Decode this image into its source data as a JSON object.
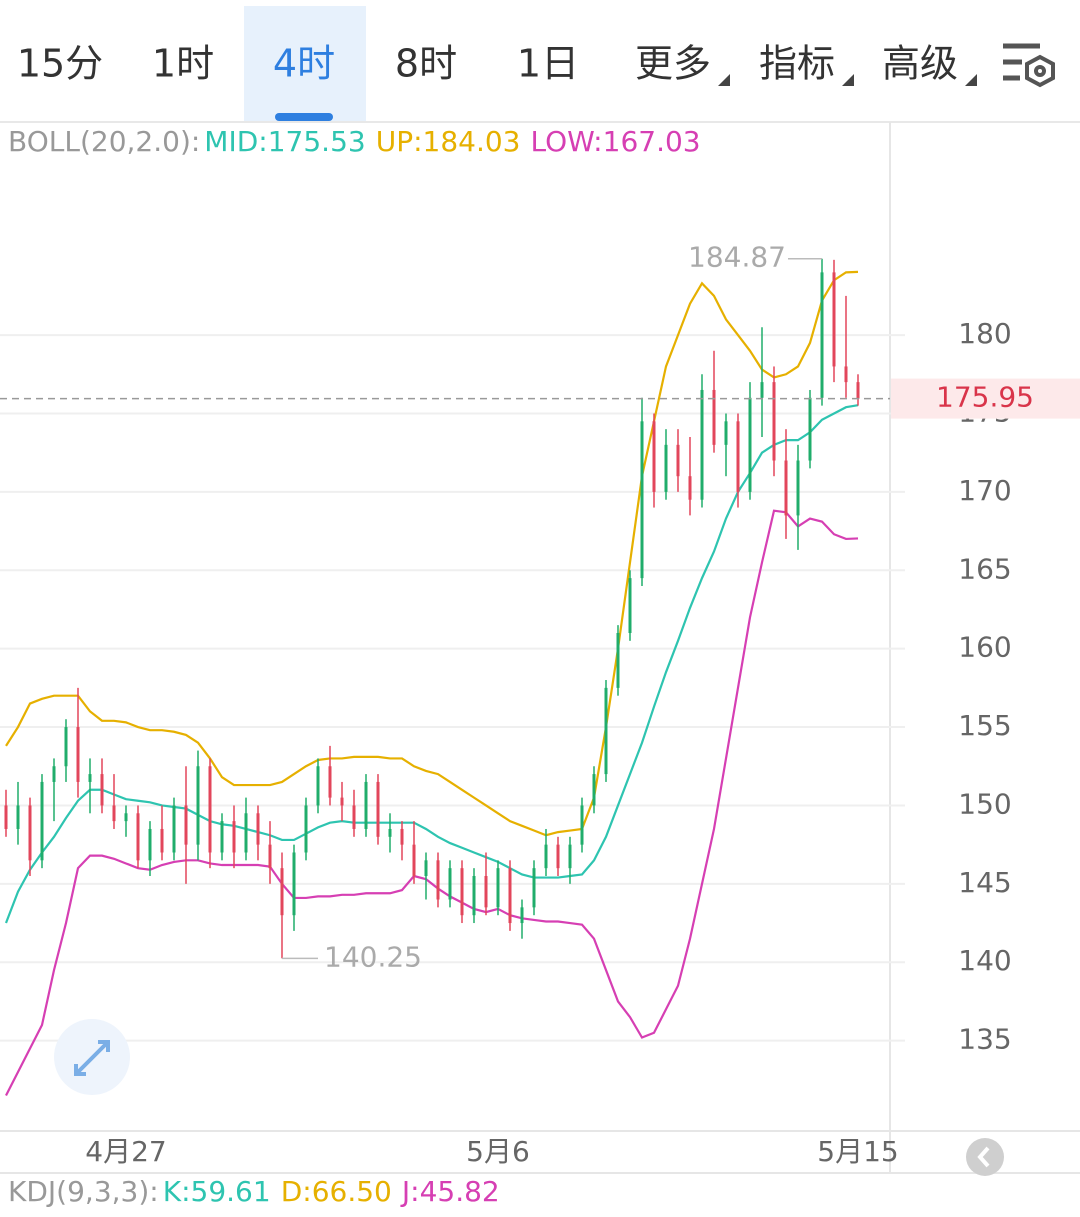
{
  "tabs": {
    "items": [
      "15分",
      "1时",
      "4时",
      "8时",
      "1日",
      "更多",
      "指标",
      "高级"
    ],
    "active": 2
  },
  "chart_data": {
    "type": "candlestick",
    "indicator": "BOLL(20,2.0):",
    "categories": [
      null,
      null,
      null,
      null,
      null,
      null,
      null,
      null,
      null,
      null,
      "4月27",
      null,
      null,
      null,
      null,
      null,
      null,
      null,
      null,
      null,
      null,
      null,
      null,
      null,
      null,
      null,
      null,
      null,
      null,
      null,
      null,
      null,
      null,
      null,
      null,
      null,
      null,
      null,
      null,
      null,
      null,
      "5月6",
      null,
      null,
      null,
      null,
      null,
      null,
      null,
      null,
      null,
      null,
      null,
      null,
      null,
      null,
      null,
      null,
      null,
      null,
      null,
      null,
      null,
      null,
      null,
      null,
      null,
      null,
      null,
      null,
      null,
      "5月15"
    ],
    "open": [
      150,
      148.5,
      150,
      146.5,
      151.5,
      152.5,
      155,
      151.5,
      152,
      150,
      149,
      149.5,
      146.5,
      148.5,
      147,
      150,
      147.5,
      152.5,
      147,
      149,
      147,
      149.5,
      147.5,
      146,
      143,
      147,
      150,
      152.5,
      150.5,
      150,
      148.5,
      151.5,
      148,
      148.5,
      147.5,
      145.5,
      146.5,
      144,
      146,
      143,
      145.5,
      143.5,
      146,
      142.5,
      143.5,
      146,
      147.5,
      146,
      147.5,
      150,
      152,
      157.5,
      161,
      164.5,
      174.5,
      170,
      173,
      171,
      169.5,
      176.5,
      173,
      174.5,
      170,
      176,
      177,
      172,
      168.5,
      172,
      176,
      184,
      178,
      177
    ],
    "high": [
      151,
      151.5,
      150.5,
      152,
      153,
      155.5,
      157.5,
      153,
      153,
      152,
      150,
      150,
      149,
      150,
      150.5,
      152.5,
      153.5,
      153,
      149.5,
      150,
      150.5,
      150,
      149,
      147,
      147.5,
      150.5,
      153,
      153.8,
      151.5,
      151,
      152,
      152,
      149.5,
      149,
      149,
      147,
      147,
      146.5,
      146.5,
      146,
      147,
      146.5,
      146.5,
      144,
      146.5,
      148.5,
      148,
      148,
      150.5,
      152.5,
      158,
      161.5,
      165,
      176,
      175,
      174,
      174,
      173.5,
      177.5,
      179,
      175,
      175,
      177,
      180.5,
      178,
      174,
      173,
      176.5,
      184.87,
      184.8,
      182.5,
      177.5
    ],
    "low": [
      148,
      147.5,
      145.5,
      146,
      149,
      151.5,
      150.5,
      149.5,
      149.5,
      148.5,
      148,
      146,
      145.5,
      146.5,
      146.5,
      145,
      146.5,
      146,
      146.5,
      146,
      146.5,
      146.5,
      145,
      140.25,
      142,
      146.5,
      149.5,
      150,
      149,
      148,
      148,
      147.5,
      147,
      146.5,
      145,
      144,
      143.5,
      143.5,
      142.5,
      142.5,
      143,
      143,
      142,
      141.5,
      143,
      145.5,
      145.5,
      145,
      147,
      149.5,
      151.5,
      157,
      160.5,
      164,
      169,
      169.5,
      170,
      168.5,
      169,
      172.5,
      171,
      169,
      169.5,
      173.5,
      171,
      167,
      166.3,
      171.5,
      175.5,
      177,
      176,
      175.5
    ],
    "close": [
      148.5,
      150,
      146.5,
      151.5,
      152.5,
      155,
      151.5,
      152,
      150,
      149,
      149.5,
      146.5,
      148.5,
      147,
      150,
      147.5,
      152.5,
      147,
      149,
      147,
      149.5,
      147.5,
      146,
      143,
      147,
      150,
      152.5,
      150.5,
      150,
      148.5,
      151.5,
      148,
      148.5,
      147.5,
      145.5,
      146.5,
      144,
      146,
      143,
      145.5,
      143.5,
      146,
      142.5,
      143.5,
      146,
      147.5,
      146,
      147.5,
      150,
      152,
      157.5,
      161,
      164.5,
      174.5,
      170,
      173,
      171,
      169.5,
      176.5,
      173,
      174.5,
      170,
      176,
      177,
      172,
      168.5,
      172,
      176,
      184,
      178,
      177,
      175.95
    ],
    "up_color": "#20ad6b",
    "down_color": "#e2465b",
    "series": [
      {
        "name": "MID:",
        "color": "#2ec4b0",
        "values": [
          142.5,
          144.5,
          145.9,
          147,
          148,
          149.2,
          150.3,
          151,
          151,
          150.7,
          150.4,
          150.3,
          150.2,
          150,
          149.9,
          149.8,
          149.4,
          149,
          148.8,
          148.7,
          148.5,
          148.3,
          148.1,
          147.8,
          147.8,
          148.2,
          148.6,
          148.9,
          149,
          148.9,
          148.9,
          148.9,
          148.9,
          148.9,
          148.9,
          148.5,
          148,
          147.6,
          147.3,
          147,
          146.7,
          146.4,
          146,
          145.6,
          145.4,
          145.4,
          145.4,
          145.5,
          145.6,
          146.5,
          148,
          150,
          152,
          154,
          156.3,
          158.5,
          160.5,
          162.6,
          164.5,
          166.2,
          168.3,
          170,
          171.2,
          172.5,
          173,
          173.3,
          173.3,
          173.8,
          174.6,
          175,
          175.4,
          175.53
        ]
      },
      {
        "name": "UP:",
        "color": "#e6b000",
        "values": [
          153.8,
          155,
          156.5,
          156.8,
          157,
          157,
          157,
          156,
          155.4,
          155.4,
          155.3,
          155,
          154.8,
          154.8,
          154.7,
          154.5,
          154,
          153,
          151.8,
          151.3,
          151.3,
          151.3,
          151.3,
          151.5,
          152,
          152.5,
          152.9,
          153,
          153,
          153.1,
          153.1,
          153.1,
          153,
          153,
          152.5,
          152.2,
          152,
          151.5,
          151,
          150.5,
          150,
          149.5,
          149,
          148.7,
          148.4,
          148.1,
          148.3,
          148.4,
          148.5,
          150.5,
          155,
          160,
          165.5,
          171,
          174.5,
          178,
          180,
          182,
          183.3,
          182.5,
          181,
          180,
          179,
          177.8,
          177.3,
          177.5,
          178,
          179.5,
          182.2,
          183.5,
          184,
          184.03
        ]
      },
      {
        "name": "LOW:",
        "color": "#d63fb3",
        "values": [
          131.5,
          133,
          134.5,
          136,
          139.5,
          142.5,
          146,
          146.8,
          146.8,
          146.6,
          146.3,
          146,
          145.9,
          146.2,
          146.4,
          146.5,
          146.5,
          146.3,
          146.2,
          146.2,
          146.2,
          146.2,
          146.1,
          145,
          144.1,
          144.1,
          144.2,
          144.2,
          144.3,
          144.3,
          144.4,
          144.4,
          144.4,
          144.6,
          145.5,
          145.3,
          144.7,
          144.2,
          143.8,
          143.4,
          143.2,
          143.4,
          143,
          142.8,
          142.7,
          142.6,
          142.6,
          142.5,
          142.4,
          141.5,
          139.5,
          137.5,
          136.5,
          135.2,
          135.5,
          137,
          138.5,
          141.5,
          145,
          148.5,
          153,
          157.5,
          162,
          165.5,
          168.8,
          168.7,
          167.8,
          168.3,
          168.1,
          167.3,
          167,
          167.03
        ]
      }
    ],
    "ylim": [
      129.3,
      193.4
    ],
    "yticks": [
      135,
      140,
      145,
      150,
      155,
      160,
      165,
      170,
      175,
      180
    ],
    "grid": true,
    "last_price_line": true
  },
  "kdj": {
    "title": "KDJ(9,3,3):",
    "names": [
      "K:",
      "D:",
      "J:"
    ],
    "colors": [
      "#2ec4b0",
      "#e6b000",
      "#d63fb3"
    ],
    "values": [
      59.61,
      66.5,
      45.82
    ],
    "value_labels": [
      "59.61",
      "66.50",
      "45.82"
    ]
  }
}
